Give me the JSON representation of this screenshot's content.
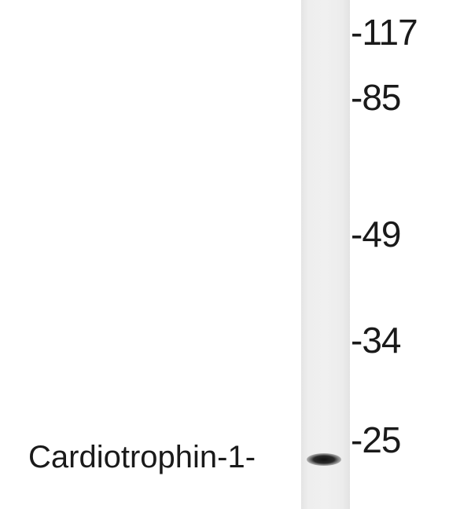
{
  "lane": {
    "background": "#ebebeb"
  },
  "band": {
    "label": "Cardiotrophin-1-",
    "color": "#1f1f1f"
  },
  "markers": [
    {
      "label": "-117"
    },
    {
      "label": "-85"
    },
    {
      "label": "-49"
    },
    {
      "label": "-34"
    },
    {
      "label": "-25"
    }
  ]
}
